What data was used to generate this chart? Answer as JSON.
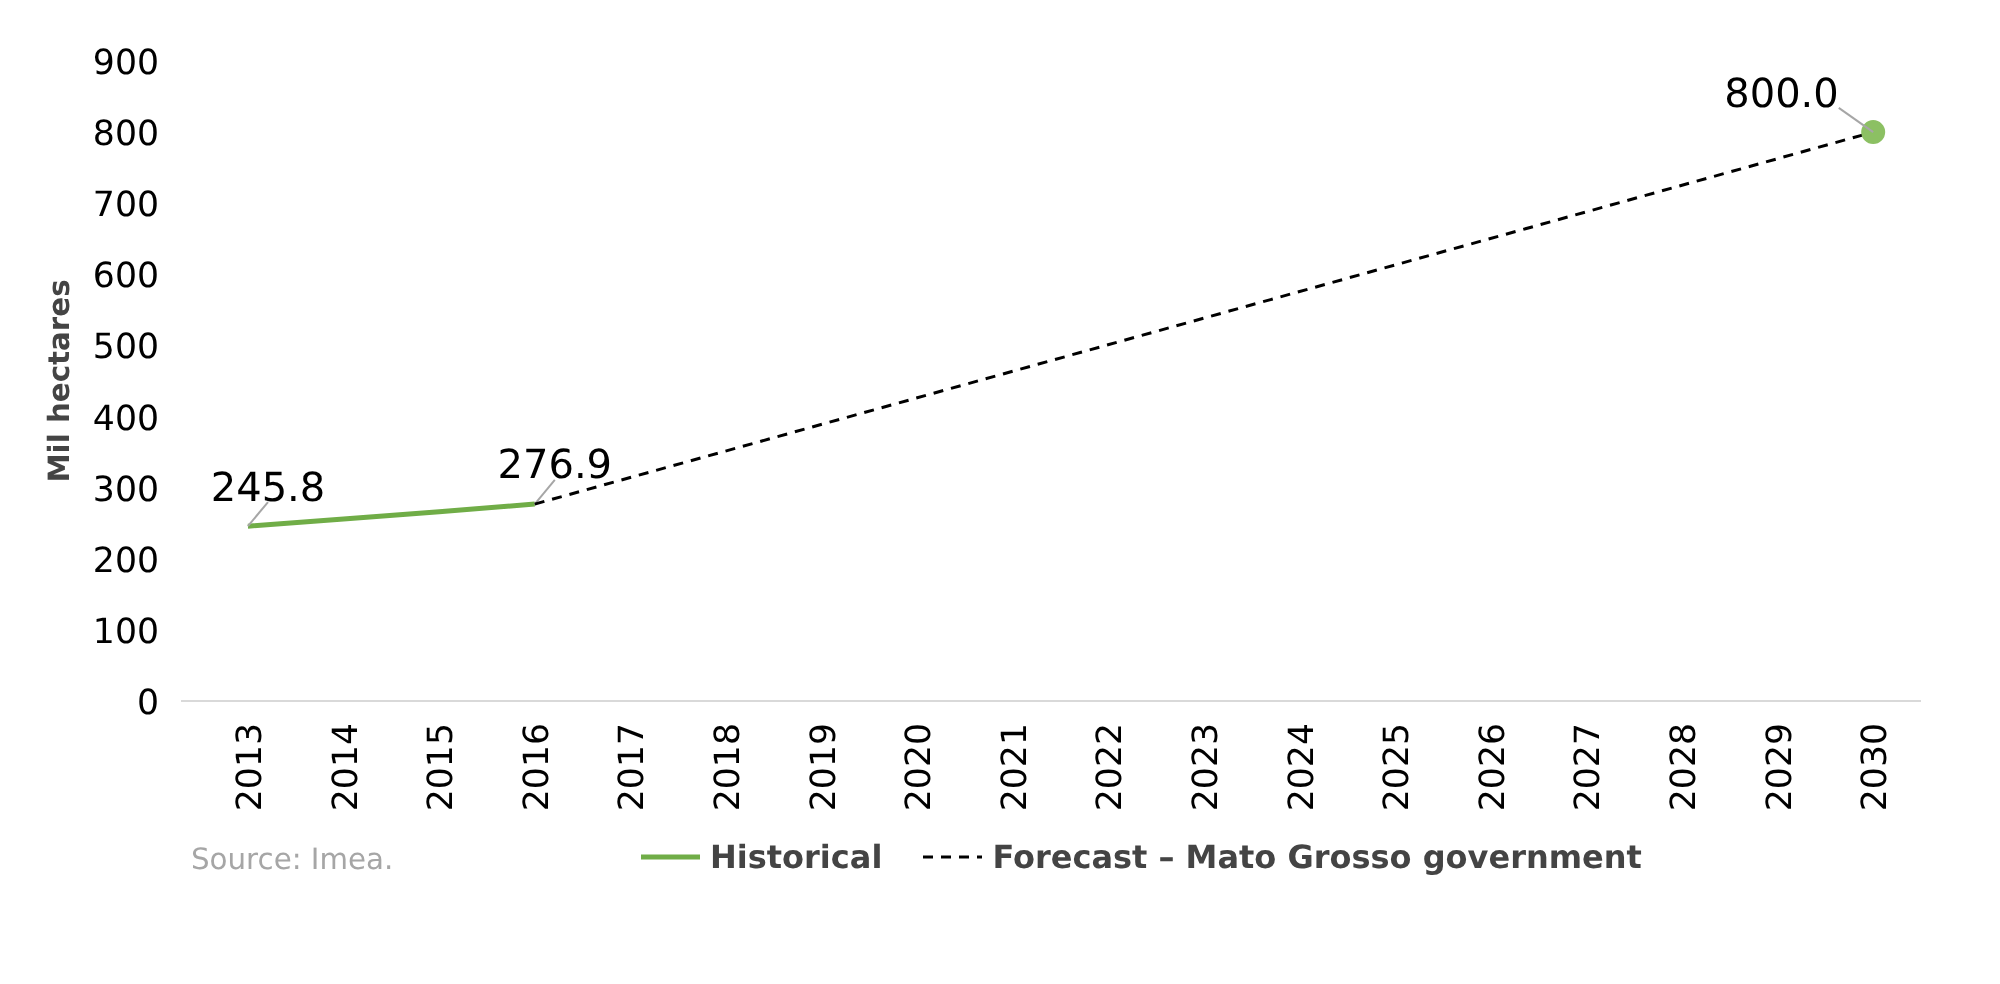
{
  "chart_data": {
    "type": "line",
    "ylabel": "Mil hectares",
    "categories": [
      "2013",
      "2014",
      "2015",
      "2016",
      "2017",
      "2018",
      "2019",
      "2020",
      "2021",
      "2022",
      "2023",
      "2024",
      "2025",
      "2026",
      "2027",
      "2028",
      "2029",
      "2030"
    ],
    "series": [
      {
        "name": "Historical",
        "color": "#70ad47",
        "line_style": "solid",
        "values": [
          245.8,
          256,
          266,
          276.9,
          null,
          null,
          null,
          null,
          null,
          null,
          null,
          null,
          null,
          null,
          null,
          null,
          null,
          null
        ],
        "value_labels": [
          "245.8",
          null,
          null,
          "276.9",
          null,
          null,
          null,
          null,
          null,
          null,
          null,
          null,
          null,
          null,
          null,
          null,
          null,
          null
        ]
      },
      {
        "name": "Forecast – Mato Grosso government",
        "color": "#000000",
        "line_style": "dashed",
        "values": [
          null,
          null,
          null,
          276.9,
          null,
          null,
          null,
          null,
          null,
          null,
          null,
          null,
          null,
          null,
          null,
          null,
          null,
          800.0
        ]
      },
      {
        "type": "scatter",
        "color": "#8cc063",
        "marker": "circle",
        "values": [
          null,
          null,
          null,
          null,
          null,
          null,
          null,
          null,
          null,
          null,
          null,
          null,
          null,
          null,
          null,
          null,
          null,
          800.0
        ],
        "value_labels": [
          null,
          null,
          null,
          null,
          null,
          null,
          null,
          null,
          null,
          null,
          null,
          null,
          null,
          null,
          null,
          null,
          null,
          "800.0"
        ]
      }
    ],
    "ylim": [
      0,
      900
    ],
    "yticks": [
      0,
      100,
      200,
      300,
      400,
      500,
      600,
      700,
      800,
      900
    ],
    "grid": false,
    "legend": "bottom",
    "annotations": [
      "Source: Imea."
    ]
  }
}
